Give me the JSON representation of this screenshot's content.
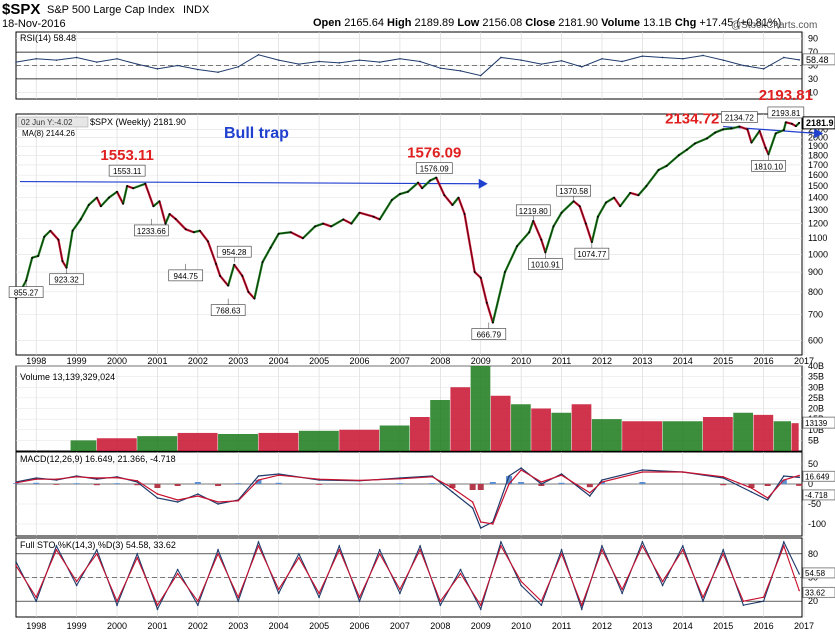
{
  "header": {
    "symbol": "$SPX",
    "name": "S&P 500 Large Cap Index",
    "exchange": "INDX",
    "date": "18-Nov-2016",
    "open_label": "Open",
    "open": "2165.64",
    "high_label": "High",
    "high": "2189.89",
    "low_label": "Low",
    "low": "2156.08",
    "close_label": "Close",
    "close": "2181.90",
    "volume_label": "Volume",
    "volume": "13.1B",
    "chg_label": "Chg",
    "chg": "+17.45 (+0.81%)",
    "watermark": "@StockCharts.com"
  },
  "colors": {
    "frame": "#000000",
    "price": "#000000",
    "up": "#1a7a1a",
    "down": "#c8102e",
    "rsi": "#1f3a6b",
    "macd": "#1f3a6b",
    "signal": "#c8102e",
    "hist_pos": "#5b8fd1",
    "hist_neg": "#b33a4a",
    "annotation_red": "#e02020",
    "annotation_blue": "#2040d0",
    "axis_text": "#000000"
  },
  "chart_data": [
    {
      "type": "line",
      "panel": "rsi",
      "title": "RSI(14) 58.48",
      "ylim": [
        0,
        100
      ],
      "yticks": [
        10,
        30,
        50,
        70,
        90
      ],
      "ref_lines": [
        30,
        70
      ],
      "last_value_label": "58.48",
      "x": [
        1997.5,
        1998.0,
        1998.5,
        1999.0,
        1999.5,
        2000.0,
        2000.5,
        2001.0,
        2001.5,
        2002.0,
        2002.5,
        2003.0,
        2003.5,
        2004.0,
        2004.5,
        2005.0,
        2005.5,
        2006.0,
        2006.5,
        2007.0,
        2007.5,
        2008.0,
        2008.5,
        2009.0,
        2009.5,
        2010.0,
        2010.5,
        2011.0,
        2011.5,
        2012.0,
        2012.5,
        2013.0,
        2013.5,
        2014.0,
        2014.5,
        2015.0,
        2015.5,
        2016.0,
        2016.5,
        2016.88
      ],
      "values": [
        55,
        60,
        58,
        62,
        55,
        60,
        52,
        45,
        50,
        44,
        40,
        48,
        66,
        58,
        52,
        56,
        54,
        58,
        55,
        60,
        56,
        46,
        42,
        35,
        62,
        58,
        52,
        57,
        48,
        60,
        56,
        64,
        62,
        60,
        65,
        58,
        50,
        45,
        62,
        58.48
      ]
    },
    {
      "type": "line",
      "panel": "price",
      "title": "$SPX (Weekly) 2181.90",
      "ma_label": "MA(8) 2144.26",
      "price_label": "2181.90",
      "date_tag": "02 Jun Y:-4.02",
      "big_label": "Bull trap",
      "scale": "log",
      "ylim": [
        550,
        2300
      ],
      "yticks": [
        600,
        700,
        800,
        900,
        1000,
        1100,
        1200,
        1300,
        1400,
        1500,
        1600,
        1700,
        1800,
        1900,
        2000,
        2100
      ],
      "last_value_label": "2181.9",
      "x": [
        1997.5,
        1997.6,
        1997.75,
        1997.9,
        1998.05,
        1998.2,
        1998.35,
        1998.55,
        1998.65,
        1998.75,
        1998.9,
        1999.1,
        1999.3,
        1999.5,
        1999.6,
        1999.8,
        2000.0,
        2000.15,
        2000.25,
        2000.4,
        2000.7,
        2000.9,
        2001.05,
        2001.2,
        2001.3,
        2001.45,
        2001.7,
        2001.9,
        2002.05,
        2002.25,
        2002.45,
        2002.55,
        2002.75,
        2002.9,
        2003.1,
        2003.25,
        2003.4,
        2003.6,
        2003.8,
        2004.0,
        2004.3,
        2004.6,
        2004.9,
        2005.1,
        2005.3,
        2005.6,
        2005.8,
        2006.0,
        2006.35,
        2006.5,
        2006.8,
        2007.0,
        2007.2,
        2007.45,
        2007.55,
        2007.75,
        2007.9,
        2008.1,
        2008.3,
        2008.45,
        2008.6,
        2008.85,
        2009.0,
        2009.15,
        2009.3,
        2009.6,
        2009.9,
        2010.2,
        2010.3,
        2010.5,
        2010.6,
        2010.8,
        2011.0,
        2011.3,
        2011.45,
        2011.6,
        2011.75,
        2011.9,
        2012.1,
        2012.3,
        2012.45,
        2012.7,
        2012.9,
        2013.1,
        2013.4,
        2013.6,
        2013.9,
        2014.1,
        2014.3,
        2014.6,
        2014.8,
        2015.0,
        2015.2,
        2015.4,
        2015.6,
        2015.7,
        2015.9,
        2016.05,
        2016.12,
        2016.3,
        2016.5,
        2016.55,
        2016.7,
        2016.8,
        2016.88
      ],
      "values": [
        770,
        800,
        855.27,
        980,
        990,
        1110,
        1150,
        1090,
        960,
        923.32,
        1150,
        1230,
        1340,
        1400,
        1330,
        1400,
        1450,
        1350,
        1500,
        1480,
        1520,
        1330,
        1370,
        1200,
        1270,
        1233.66,
        1160,
        1140,
        1150,
        1080,
        944.75,
        880,
        830,
        940,
        880,
        800,
        768.63,
        954.28,
        1040,
        1130,
        1140,
        1100,
        1180,
        1200,
        1180,
        1230,
        1200,
        1280,
        1250,
        1230,
        1380,
        1430,
        1450,
        1530,
        1480,
        1550,
        1576.09,
        1420,
        1340,
        1400,
        1270,
        900,
        870,
        750,
        666.79,
        900,
        1050,
        1140,
        1219.8,
        1090,
        1010.91,
        1180,
        1280,
        1370.58,
        1330,
        1200,
        1074.77,
        1250,
        1360,
        1400,
        1330,
        1440,
        1420,
        1500,
        1650,
        1690,
        1800,
        1860,
        1930,
        1990,
        2060,
        2100,
        2110,
        2134.72,
        2100,
        1940,
        2080,
        1880,
        1810.1,
        2050,
        2090,
        2190,
        2170,
        2140,
        2181.9
      ],
      "annotations": [
        {
          "text": "1553.11",
          "box": "1553.11",
          "x": 2000.25,
          "y": 1553.11,
          "color": "red"
        },
        {
          "text": "1576.09",
          "box": "1576.09",
          "x": 2007.85,
          "y": 1576.09,
          "color": "red"
        },
        {
          "text": "2134.72",
          "box": "2134.72",
          "x": 2015.4,
          "y": 2134.72,
          "color": "red"
        },
        {
          "text": "2193.81",
          "box": "2193.81",
          "x": 2016.55,
          "y": 2193.81,
          "color": "red"
        }
      ],
      "low_labels": [
        {
          "text": "855.27",
          "x": 1997.75,
          "y": 855.27
        },
        {
          "text": "923.32",
          "x": 1998.75,
          "y": 923.32
        },
        {
          "text": "1233.66",
          "x": 2000.85,
          "y": 1233.66
        },
        {
          "text": "944.75",
          "x": 2001.7,
          "y": 944.75
        },
        {
          "text": "954.28",
          "x": 2002.9,
          "y": 954.28
        },
        {
          "text": "768.63",
          "x": 2002.75,
          "y": 768.63
        },
        {
          "text": "666.79",
          "x": 2009.2,
          "y": 666.79
        },
        {
          "text": "1219.80",
          "x": 2010.3,
          "y": 1219.8
        },
        {
          "text": "1010.91",
          "x": 2010.6,
          "y": 1010.91
        },
        {
          "text": "1370.58",
          "x": 2011.3,
          "y": 1370.58
        },
        {
          "text": "1074.77",
          "x": 2011.75,
          "y": 1074.77
        },
        {
          "text": "1810.10",
          "x": 2016.12,
          "y": 1810.1
        }
      ],
      "trendlines": [
        {
          "x1": 1997.6,
          "y1": 1540,
          "x2": 2009.0,
          "y2": 1520
        },
        {
          "x1": 2015.0,
          "y1": 2135,
          "x2": 2017.3,
          "y2": 2050
        }
      ]
    },
    {
      "type": "bar",
      "panel": "volume",
      "title": "Volume 13,139,329,024",
      "ylim": [
        0,
        40
      ],
      "yticks": [
        5,
        10,
        15,
        20,
        25,
        30,
        35,
        40
      ],
      "ytick_labels": [
        "5B",
        "10B",
        "15B",
        "20B",
        "25B",
        "30B",
        "35B",
        "40B"
      ],
      "last_value_label": "13139",
      "x": [
        1999.0,
        2000.0,
        2001.0,
        2002.0,
        2003.0,
        2004.0,
        2005.0,
        2006.0,
        2007.0,
        2007.5,
        2008.0,
        2008.5,
        2009.0,
        2009.5,
        2010.0,
        2010.5,
        2011.0,
        2011.5,
        2012.0,
        2013.0,
        2014.0,
        2015.0,
        2015.5,
        2016.0,
        2016.5,
        2016.88
      ],
      "values": [
        5.0,
        6.0,
        7.0,
        8.5,
        8.0,
        8.5,
        9.5,
        10.0,
        12.0,
        16.0,
        24.0,
        30.0,
        40.0,
        26.0,
        22.0,
        20.0,
        18.0,
        22.0,
        15.0,
        14.0,
        14.0,
        16.0,
        18.0,
        17.0,
        14.0,
        13.1
      ]
    },
    {
      "type": "line",
      "panel": "macd",
      "title": "MACD(12,26,9) 16.649, 21.366, -4.718",
      "ylim": [
        -130,
        80
      ],
      "yticks": [
        50,
        0,
        -50,
        -100
      ],
      "last_value_labels": [
        "16.649",
        "-4.718"
      ],
      "x": [
        1997.5,
        1998.0,
        1998.5,
        1999.0,
        1999.5,
        2000.0,
        2000.5,
        2001.0,
        2001.5,
        2002.0,
        2002.5,
        2003.0,
        2003.5,
        2004.0,
        2005.0,
        2006.0,
        2007.0,
        2007.8,
        2008.3,
        2008.8,
        2009.0,
        2009.3,
        2009.7,
        2010.0,
        2010.5,
        2011.0,
        2011.7,
        2012.0,
        2013.0,
        2014.0,
        2015.0,
        2015.7,
        2016.1,
        2016.5,
        2016.88
      ],
      "series": [
        {
          "name": "MACD",
          "values": [
            5,
            15,
            10,
            20,
            12,
            18,
            5,
            -35,
            -45,
            -25,
            -50,
            -40,
            20,
            25,
            10,
            8,
            15,
            20,
            -20,
            -60,
            -110,
            -95,
            20,
            40,
            0,
            25,
            -30,
            10,
            35,
            30,
            15,
            -20,
            -40,
            20,
            16.649
          ]
        },
        {
          "name": "Signal",
          "values": [
            3,
            12,
            12,
            18,
            15,
            16,
            8,
            -25,
            -40,
            -30,
            -45,
            -42,
            10,
            22,
            12,
            9,
            13,
            18,
            -10,
            -45,
            -95,
            -100,
            0,
            35,
            5,
            22,
            -22,
            5,
            30,
            30,
            18,
            -10,
            -35,
            10,
            21.366
          ]
        }
      ]
    },
    {
      "type": "line",
      "panel": "stochastic",
      "title": "Full STO %K(14,3) %D(3) 54.58, 33.62",
      "ylim": [
        0,
        100
      ],
      "yticks": [
        20,
        50,
        80
      ],
      "ref_lines": [
        20,
        80
      ],
      "last_value_labels": [
        "54.58",
        "33.62"
      ],
      "x": [
        1997.5,
        1998.0,
        1998.5,
        1999.0,
        1999.5,
        2000.0,
        2000.5,
        2001.0,
        2001.5,
        2002.0,
        2002.5,
        2003.0,
        2003.5,
        2004.0,
        2004.5,
        2005.0,
        2005.5,
        2006.0,
        2006.5,
        2007.0,
        2007.5,
        2008.0,
        2008.5,
        2009.0,
        2009.5,
        2010.0,
        2010.5,
        2011.0,
        2011.5,
        2012.0,
        2012.5,
        2013.0,
        2013.5,
        2014.0,
        2014.5,
        2015.0,
        2015.5,
        2016.0,
        2016.5,
        2016.88
      ],
      "series": [
        {
          "name": "%K",
          "values": [
            70,
            20,
            90,
            40,
            85,
            15,
            80,
            10,
            60,
            15,
            85,
            20,
            95,
            30,
            80,
            25,
            90,
            20,
            85,
            30,
            90,
            15,
            60,
            10,
            95,
            40,
            15,
            85,
            10,
            90,
            30,
            95,
            40,
            90,
            20,
            85,
            15,
            20,
            95,
            54.58
          ]
        },
        {
          "name": "%D",
          "values": [
            65,
            25,
            85,
            45,
            80,
            20,
            75,
            15,
            55,
            20,
            80,
            25,
            90,
            35,
            75,
            30,
            85,
            25,
            80,
            35,
            85,
            20,
            55,
            15,
            90,
            45,
            20,
            80,
            15,
            85,
            35,
            90,
            45,
            85,
            25,
            80,
            20,
            25,
            90,
            33.62
          ]
        }
      ]
    }
  ],
  "x_axis": {
    "years": [
      "1998",
      "1999",
      "2000",
      "2001",
      "2002",
      "2003",
      "2004",
      "2005",
      "2006",
      "2007",
      "2008",
      "2009",
      "2010",
      "2011",
      "2012",
      "2013",
      "2014",
      "2015",
      "2016",
      "2017"
    ]
  }
}
